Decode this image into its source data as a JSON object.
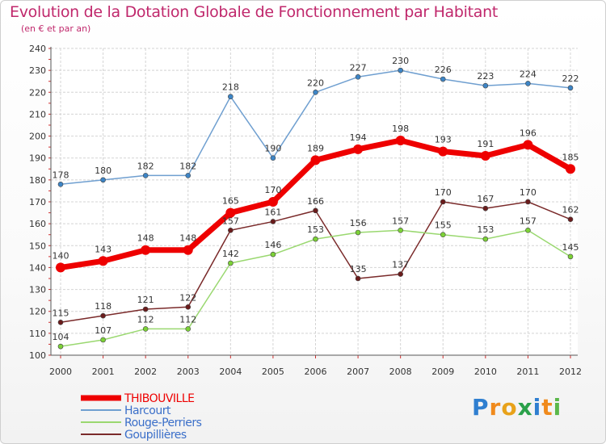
{
  "title": "Evolution de la Dotation Globale de Fonctionnement par Habitant",
  "subtitle": "(en € et par an)",
  "logo": {
    "text": "Proxiti",
    "letters": [
      "P",
      "r",
      "o",
      "x",
      "i",
      "t",
      "i"
    ],
    "colors": [
      "#2f7fd0",
      "#f08a1c",
      "#e8a21a",
      "#2aa14a",
      "#2f7fd0",
      "#f08a1c",
      "#5bb84a"
    ]
  },
  "chart_data": {
    "type": "line",
    "title": "Evolution de la Dotation Globale de Fonctionnement par Habitant",
    "subtitle": "(en € et par an)",
    "categories": [
      "2000",
      "2001",
      "2002",
      "2003",
      "2004",
      "2005",
      "2006",
      "2007",
      "2008",
      "2009",
      "2010",
      "2011",
      "2012"
    ],
    "ylim": [
      100,
      240
    ],
    "yticks": [
      100,
      110,
      120,
      130,
      140,
      150,
      160,
      170,
      180,
      190,
      200,
      210,
      220,
      230,
      240
    ],
    "grid": true,
    "legend_position": "bottom-left",
    "series": [
      {
        "name": "THIBOUVILLE",
        "color": "#ee0000",
        "marker": "#ee0000",
        "width": 7,
        "legend_color": "#ee0000",
        "label_color": "#333333",
        "values": [
          140,
          143,
          148,
          148,
          165,
          170,
          189,
          194,
          198,
          193,
          191,
          196,
          185
        ]
      },
      {
        "name": "Harcourt",
        "color": "#6f9fd0",
        "marker": "#3d85c6",
        "width": 1.5,
        "legend_color": "#3b6fc9",
        "label_color": "#333333",
        "values": [
          178,
          180,
          182,
          182,
          218,
          190,
          220,
          227,
          230,
          226,
          223,
          224,
          222
        ]
      },
      {
        "name": "Rouge-Perriers",
        "color": "#9ad870",
        "marker": "#7cd236",
        "width": 1.5,
        "legend_color": "#3b6fc9",
        "label_color": "#333333",
        "values": [
          104,
          107,
          112,
          112,
          142,
          146,
          153,
          156,
          157,
          155,
          153,
          157,
          145
        ]
      },
      {
        "name": "Goupillières",
        "color": "#7a2a2a",
        "marker": "#6b1c1c",
        "width": 1.5,
        "legend_color": "#3b6fc9",
        "label_color": "#333333",
        "values": [
          115,
          118,
          121,
          122,
          157,
          161,
          166,
          135,
          137,
          170,
          167,
          170,
          162
        ]
      }
    ]
  }
}
